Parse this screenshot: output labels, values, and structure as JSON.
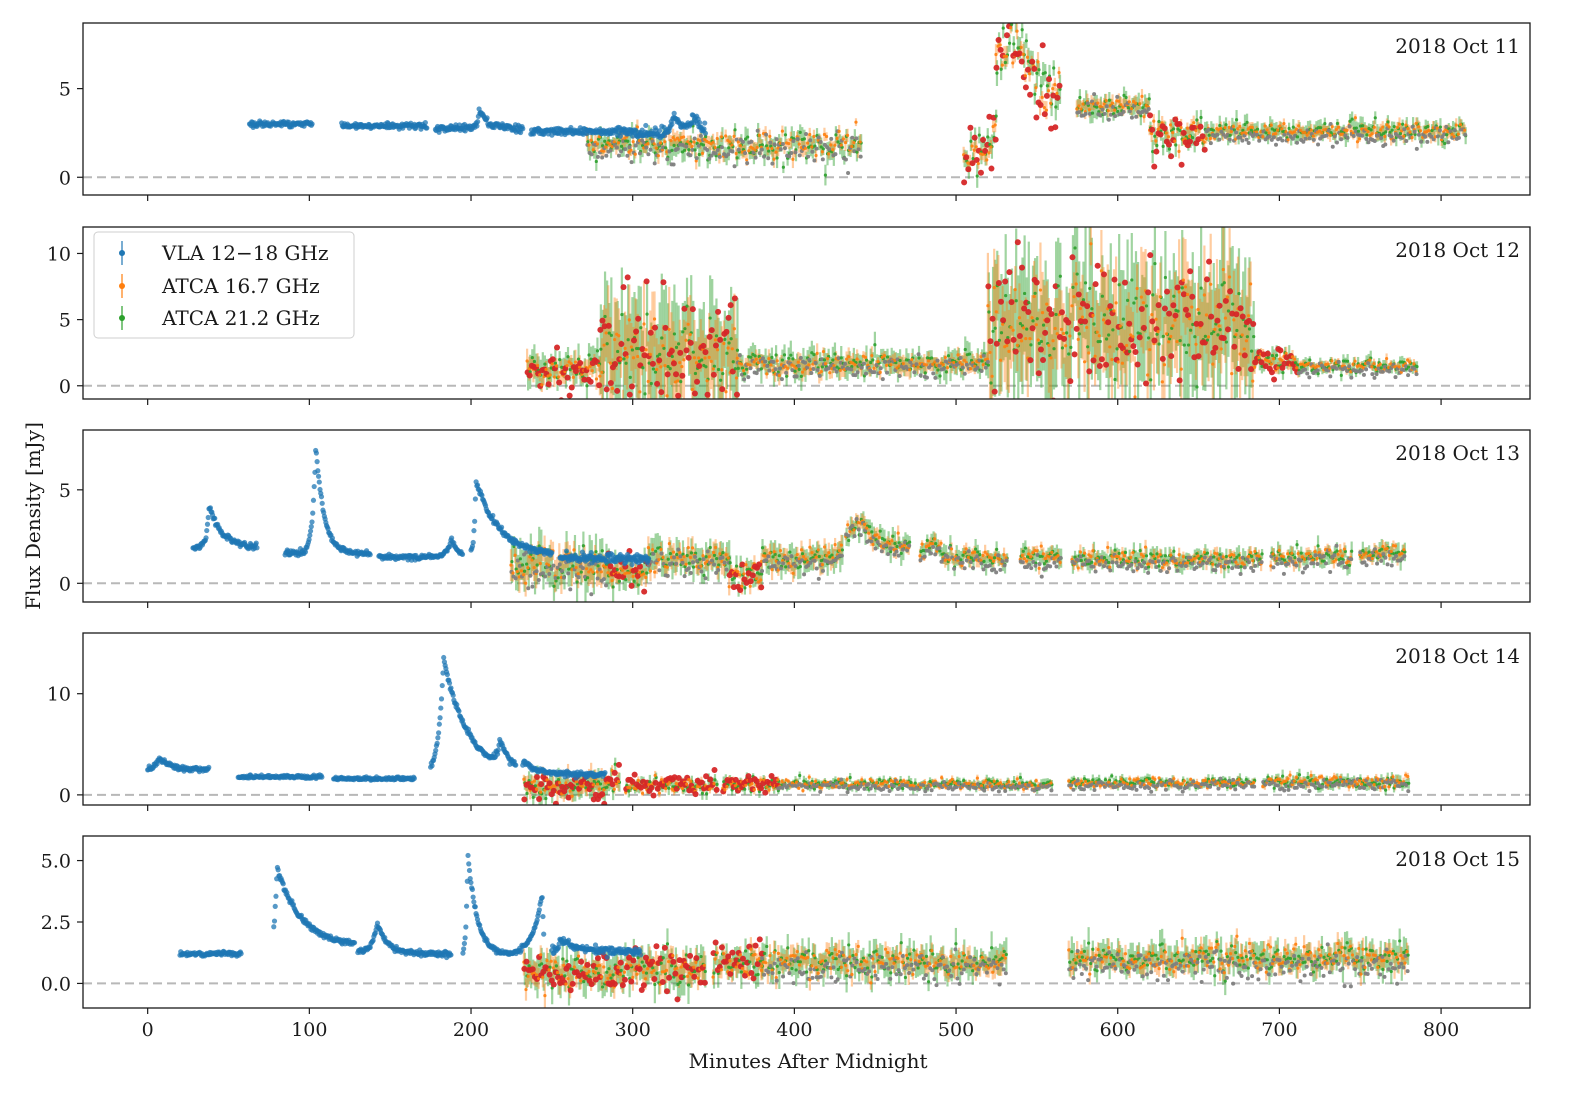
{
  "figure": {
    "ylabel": "Flux Density [mJy]",
    "xlabel": "Minutes After Midnight"
  },
  "colors": {
    "vla": "#1f77b4",
    "atca16": "#ff7f0e",
    "atca21": "#2ca02c",
    "atca_red": "#d62728",
    "atca_gray": "#7f7f7f",
    "zero_line": "#b8b8b8",
    "axis": "#1a1a1a"
  },
  "chart_data": {
    "type": "scatter",
    "xlim": [
      -40,
      855
    ],
    "xticks": [
      0,
      100,
      200,
      300,
      400,
      500,
      600,
      700,
      800
    ],
    "xtick_labels": [
      "0",
      "100",
      "200",
      "300",
      "400",
      "500",
      "600",
      "700",
      "800"
    ],
    "legend": [
      {
        "label": "VLA 12−18 GHz",
        "color": "#1f77b4"
      },
      {
        "label": "ATCA 16.7 GHz",
        "color": "#ff7f0e"
      },
      {
        "label": "ATCA 21.2 GHz",
        "color": "#2ca02c"
      }
    ],
    "panels": [
      {
        "date": "2018 Oct 11",
        "ylim": [
          -1,
          8.7
        ],
        "yticks": [
          0,
          5
        ],
        "ytick_labels": [
          "0",
          "5"
        ],
        "vla_segments": [
          {
            "x0": 63,
            "x1": 102,
            "base": 3.0,
            "noise": 0.15
          },
          {
            "x0": 120,
            "x1": 173,
            "base": 2.9,
            "noise": 0.15
          },
          {
            "x0": 178,
            "x1": 232,
            "base": 2.8,
            "noise": 0.2
          },
          {
            "x0": 237,
            "x1": 300,
            "base": 2.6,
            "noise": 0.2
          },
          {
            "x0": 300,
            "x1": 345,
            "base": 2.5,
            "noise": 0.3
          }
        ],
        "vla_flares": [
          {
            "t": 205,
            "amp": 1.0,
            "rise": 1,
            "decay": 5
          },
          {
            "t": 325,
            "amp": 1.0,
            "rise": 2,
            "decay": 6
          },
          {
            "t": 337,
            "amp": 0.9,
            "rise": 2,
            "decay": 6
          }
        ],
        "atca_segments": [
          {
            "x0": 272,
            "x1": 442,
            "level": 1.8,
            "scatter": 0.7,
            "err": 0.5,
            "red": false
          },
          {
            "x0": 505,
            "x1": 525,
            "level": 1.2,
            "scatter": 0.9,
            "err": 0.5,
            "red": true
          },
          {
            "x0": 525,
            "x1": 565,
            "level": 5.0,
            "scatter": 1.2,
            "err": 0.6,
            "red": true
          },
          {
            "x0": 575,
            "x1": 620,
            "level": 4.0,
            "scatter": 0.5,
            "err": 0.5,
            "red": false
          },
          {
            "x0": 620,
            "x1": 655,
            "level": 2.4,
            "scatter": 0.8,
            "err": 0.5,
            "red": true
          },
          {
            "x0": 655,
            "x1": 815,
            "level": 2.6,
            "scatter": 0.4,
            "err": 0.4,
            "red": false
          }
        ],
        "atca_bumps": [
          {
            "t": 535,
            "amp": 2.5,
            "width": 12
          }
        ]
      },
      {
        "date": "2018 Oct 12",
        "ylim": [
          -1,
          12
        ],
        "yticks": [
          0,
          5,
          10
        ],
        "ytick_labels": [
          "0",
          "5",
          "10"
        ],
        "vla_segments": [],
        "vla_flares": [],
        "atca_segments": [
          {
            "x0": 235,
            "x1": 280,
            "level": 1.2,
            "scatter": 1.0,
            "err": 1.0,
            "red": true
          },
          {
            "x0": 280,
            "x1": 365,
            "level": 2.5,
            "scatter": 2.8,
            "err": 3.5,
            "red": true
          },
          {
            "x0": 365,
            "x1": 520,
            "level": 1.7,
            "scatter": 0.7,
            "err": 0.8,
            "red": false
          },
          {
            "x0": 520,
            "x1": 685,
            "level": 4.5,
            "scatter": 3.5,
            "err": 4.0,
            "red": true
          },
          {
            "x0": 685,
            "x1": 712,
            "level": 2.0,
            "scatter": 0.6,
            "err": 0.6,
            "red": true
          },
          {
            "x0": 712,
            "x1": 785,
            "level": 1.5,
            "scatter": 0.4,
            "err": 0.4,
            "red": false
          }
        ],
        "atca_bumps": []
      },
      {
        "date": "2018 Oct 13",
        "ylim": [
          -1,
          8.2
        ],
        "yticks": [
          0,
          5
        ],
        "ytick_labels": [
          "0",
          "5"
        ],
        "vla_segments": [
          {
            "x0": 28,
            "x1": 68,
            "base": 1.9,
            "noise": 0.15
          },
          {
            "x0": 85,
            "x1": 138,
            "base": 1.6,
            "noise": 0.12
          },
          {
            "x0": 143,
            "x1": 195,
            "base": 1.4,
            "noise": 0.12
          },
          {
            "x0": 200,
            "x1": 250,
            "base": 1.5,
            "noise": 0.15
          },
          {
            "x0": 255,
            "x1": 310,
            "base": 1.3,
            "noise": 0.25
          }
        ],
        "vla_flares": [
          {
            "t": 38,
            "amp": 2.3,
            "rise": 1.5,
            "decay": 8
          },
          {
            "t": 104,
            "amp": 5.8,
            "rise": 2,
            "decay": 5
          },
          {
            "t": 203,
            "amp": 4.0,
            "rise": 1,
            "decay": 14
          },
          {
            "t": 188,
            "amp": 1.0,
            "rise": 3,
            "decay": 4
          }
        ],
        "atca_segments": [
          {
            "x0": 225,
            "x1": 285,
            "level": 1.0,
            "scatter": 0.8,
            "err": 0.9,
            "red": false
          },
          {
            "x0": 285,
            "x1": 310,
            "level": 0.6,
            "scatter": 0.6,
            "err": 0.6,
            "red": true
          },
          {
            "x0": 310,
            "x1": 360,
            "level": 1.3,
            "scatter": 0.6,
            "err": 0.7,
            "red": false
          },
          {
            "x0": 360,
            "x1": 380,
            "level": 0.5,
            "scatter": 0.6,
            "err": 0.5,
            "red": true
          },
          {
            "x0": 380,
            "x1": 430,
            "level": 1.3,
            "scatter": 0.5,
            "err": 0.6,
            "red": false
          },
          {
            "x0": 432,
            "x1": 472,
            "level": 2.0,
            "scatter": 0.4,
            "err": 0.5,
            "red": false
          },
          {
            "x0": 478,
            "x1": 532,
            "level": 1.4,
            "scatter": 0.4,
            "err": 0.4,
            "red": false
          },
          {
            "x0": 540,
            "x1": 565,
            "level": 1.4,
            "scatter": 0.4,
            "err": 0.4,
            "red": false
          },
          {
            "x0": 572,
            "x1": 690,
            "level": 1.3,
            "scatter": 0.4,
            "err": 0.4,
            "red": false
          },
          {
            "x0": 695,
            "x1": 745,
            "level": 1.4,
            "scatter": 0.4,
            "err": 0.4,
            "red": false
          },
          {
            "x0": 750,
            "x1": 778,
            "level": 1.6,
            "scatter": 0.4,
            "err": 0.4,
            "red": false
          }
        ],
        "atca_bumps": [
          {
            "t": 440,
            "amp": 1.2,
            "width": 10
          },
          {
            "t": 485,
            "amp": 0.7,
            "width": 8
          }
        ]
      },
      {
        "date": "2018 Oct 14",
        "ylim": [
          -1,
          16
        ],
        "yticks": [
          0,
          10
        ],
        "ytick_labels": [
          "0",
          "10"
        ],
        "vla_segments": [
          {
            "x0": 0,
            "x1": 38,
            "base": 2.5,
            "noise": 0.25
          },
          {
            "x0": 56,
            "x1": 108,
            "base": 1.8,
            "noise": 0.15
          },
          {
            "x0": 115,
            "x1": 165,
            "base": 1.6,
            "noise": 0.15
          },
          {
            "x0": 175,
            "x1": 228,
            "base": 2.0,
            "noise": 0.3
          },
          {
            "x0": 232,
            "x1": 283,
            "base": 2.0,
            "noise": 0.25
          }
        ],
        "vla_flares": [
          {
            "t": 7,
            "amp": 1.3,
            "rise": 2,
            "decay": 6
          },
          {
            "t": 183,
            "amp": 11.5,
            "rise": 3,
            "decay": 15
          },
          {
            "t": 218,
            "amp": 2.5,
            "rise": 2,
            "decay": 5
          },
          {
            "t": 233,
            "amp": 0.8,
            "rise": 1,
            "decay": 6
          }
        ],
        "atca_segments": [
          {
            "x0": 233,
            "x1": 292,
            "level": 0.9,
            "scatter": 0.9,
            "err": 1.0,
            "red": true
          },
          {
            "x0": 296,
            "x1": 352,
            "level": 0.9,
            "scatter": 0.6,
            "err": 0.5,
            "red": true
          },
          {
            "x0": 356,
            "x1": 390,
            "level": 1.0,
            "scatter": 0.6,
            "err": 0.5,
            "red": true
          },
          {
            "x0": 390,
            "x1": 560,
            "level": 1.1,
            "scatter": 0.4,
            "err": 0.4,
            "red": false
          },
          {
            "x0": 570,
            "x1": 685,
            "level": 1.2,
            "scatter": 0.4,
            "err": 0.4,
            "red": false
          },
          {
            "x0": 690,
            "x1": 780,
            "level": 1.3,
            "scatter": 0.5,
            "err": 0.5,
            "red": false
          }
        ],
        "atca_bumps": []
      },
      {
        "date": "2018 Oct 15",
        "ylim": [
          -1.0,
          6.0
        ],
        "yticks": [
          0.0,
          2.5,
          5.0
        ],
        "ytick_labels": [
          "0.0",
          "2.5",
          "5.0"
        ],
        "vla_segments": [
          {
            "x0": 20,
            "x1": 58,
            "base": 1.2,
            "noise": 0.1
          },
          {
            "x0": 78,
            "x1": 128,
            "base": 1.5,
            "noise": 0.12
          },
          {
            "x0": 130,
            "x1": 188,
            "base": 1.2,
            "noise": 0.1
          },
          {
            "x0": 195,
            "x1": 245,
            "base": 1.1,
            "noise": 0.1
          },
          {
            "x0": 250,
            "x1": 305,
            "base": 1.3,
            "noise": 0.15
          }
        ],
        "vla_flares": [
          {
            "t": 80,
            "amp": 3.2,
            "rise": 1.5,
            "decay": 15
          },
          {
            "t": 142,
            "amp": 1.2,
            "rise": 3,
            "decay": 6
          },
          {
            "t": 198,
            "amp": 4.2,
            "rise": 1,
            "decay": 6
          },
          {
            "t": 244,
            "amp": 2.5,
            "rise": 6,
            "decay": 1
          },
          {
            "t": 255,
            "amp": 0.5,
            "rise": 1,
            "decay": 10
          }
        ],
        "atca_segments": [
          {
            "x0": 233,
            "x1": 290,
            "level": 0.4,
            "scatter": 0.5,
            "err": 0.6,
            "red": true
          },
          {
            "x0": 290,
            "x1": 345,
            "level": 0.6,
            "scatter": 0.6,
            "err": 0.6,
            "red": true
          },
          {
            "x0": 350,
            "x1": 380,
            "level": 0.8,
            "scatter": 0.5,
            "err": 0.5,
            "red": true
          },
          {
            "x0": 380,
            "x1": 532,
            "level": 0.9,
            "scatter": 0.5,
            "err": 0.5,
            "red": false
          },
          {
            "x0": 570,
            "x1": 780,
            "level": 1.0,
            "scatter": 0.5,
            "err": 0.5,
            "red": false
          }
        ],
        "atca_bumps": []
      }
    ]
  }
}
